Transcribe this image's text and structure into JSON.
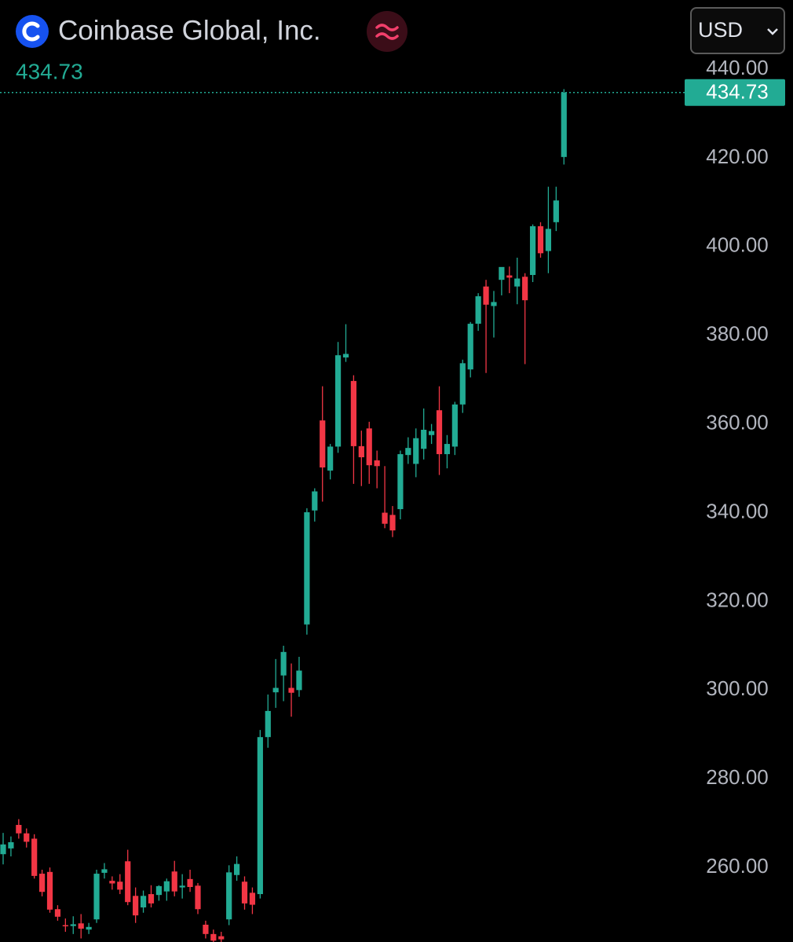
{
  "header": {
    "title": "Coinbase Global, Inc.",
    "currency": "USD"
  },
  "chart_data": {
    "type": "candlestick",
    "open": [
      263.0,
      264.3,
      269.6,
      267.7,
      266.5,
      258.6,
      259.0,
      250.6,
      247.0,
      246.8,
      247.4,
      246.0,
      248.3,
      258.8,
      257.0,
      256.8,
      261.4,
      253.6,
      251.0,
      254.0,
      253.8,
      254.6,
      259.1,
      255.5,
      257.4,
      255.9,
      247.1,
      245.0,
      244.5,
      248.3,
      258.3,
      256.8,
      254.3,
      254.0,
      289.4,
      299.5,
      303.3,
      300.5,
      300.0,
      314.8,
      340.5,
      360.8,
      349.5,
      354.9,
      375.0,
      369.7,
      355.0,
      359.0,
      351.8,
      340.0,
      339.5,
      340.8,
      353.0,
      351.0,
      354.4,
      357.5,
      363.1,
      353.2,
      354.9,
      364.4,
      372.3,
      382.6,
      391.0,
      386.6,
      392.5,
      393.5,
      391.0,
      393.2,
      393.6,
      404.6,
      399.0,
      405.5,
      420.2
    ],
    "high": [
      267.8,
      267.0,
      270.9,
      268.8,
      267.5,
      259.5,
      260.0,
      251.5,
      248.5,
      249.0,
      249.5,
      247.5,
      259.5,
      261.0,
      258.0,
      258.5,
      264.0,
      255.5,
      254.8,
      256.0,
      256.0,
      257.5,
      261.5,
      258.5,
      259.5,
      256.5,
      248.0,
      246.0,
      245.5,
      260.5,
      262.5,
      258.0,
      255.5,
      291.0,
      299.0,
      307.0,
      310.0,
      306.0,
      307.5,
      341.0,
      345.5,
      368.5,
      355.5,
      378.5,
      382.5,
      371.0,
      358.5,
      360.5,
      354.0,
      350.5,
      341.5,
      354.0,
      357.0,
      359.0,
      363.5,
      360.0,
      368.5,
      357.5,
      365.0,
      374.5,
      383.0,
      389.5,
      392.5,
      390.0,
      395.0,
      395.5,
      397.5,
      394.0,
      405.0,
      405.5,
      413.5,
      413.5,
      435.5
    ],
    "low": [
      260.7,
      262.5,
      266.5,
      264.5,
      257.5,
      253.5,
      249.8,
      248.0,
      245.5,
      245.0,
      244.0,
      245.0,
      247.5,
      257.5,
      255.0,
      254.0,
      251.5,
      247.5,
      249.8,
      251.0,
      252.5,
      252.5,
      253.5,
      253.0,
      254.5,
      249.5,
      244.0,
      243.2,
      243.0,
      247.0,
      257.0,
      250.5,
      249.5,
      253.0,
      287.0,
      296.0,
      297.5,
      294.0,
      298.5,
      312.5,
      338.0,
      342.5,
      347.5,
      353.5,
      374.0,
      346.5,
      346.0,
      346.5,
      345.5,
      336.5,
      334.5,
      338.5,
      351.0,
      348.0,
      352.0,
      355.5,
      348.5,
      350.0,
      353.0,
      362.5,
      370.5,
      381.0,
      371.5,
      379.5,
      389.0,
      389.5,
      387.0,
      373.5,
      392.0,
      397.5,
      394.0,
      403.5,
      418.5
    ],
    "close": [
      265.2,
      265.7,
      267.7,
      265.8,
      258.1,
      254.5,
      250.5,
      248.9,
      246.8,
      247.2,
      246.2,
      246.6,
      258.6,
      259.6,
      256.4,
      255.0,
      252.2,
      249.2,
      253.6,
      251.9,
      255.8,
      256.9,
      254.6,
      255.9,
      255.6,
      250.6,
      245.0,
      243.5,
      243.8,
      258.9,
      260.8,
      251.9,
      251.6,
      289.4,
      295.3,
      300.5,
      308.6,
      299.4,
      304.4,
      340.1,
      344.8,
      350.2,
      354.9,
      375.5,
      375.8,
      355.0,
      352.5,
      350.7,
      350.5,
      337.5,
      336.0,
      353.2,
      354.6,
      356.8,
      358.7,
      358.4,
      353.2,
      355.5,
      364.4,
      373.7,
      382.6,
      388.8,
      386.9,
      387.5,
      395.4,
      393.0,
      392.8,
      387.9,
      404.6,
      398.5,
      404.0,
      410.4,
      434.73
    ],
    "last_value": 434.73,
    "up_color": "#22ab94",
    "down_color": "#f23645",
    "ylim": [
      243.2,
      455.6
    ],
    "yticks": [
      {
        "value": 260,
        "label": "260.00"
      },
      {
        "value": 280,
        "label": "280.00"
      },
      {
        "value": 300,
        "label": "300.00"
      },
      {
        "value": 320,
        "label": "320.00"
      },
      {
        "value": 340,
        "label": "340.00"
      },
      {
        "value": 360,
        "label": "360.00"
      },
      {
        "value": 380,
        "label": "380.00"
      },
      {
        "value": 400,
        "label": "400.00"
      },
      {
        "value": 420,
        "label": "420.00"
      },
      {
        "value": 440,
        "label": "440.00"
      }
    ]
  }
}
